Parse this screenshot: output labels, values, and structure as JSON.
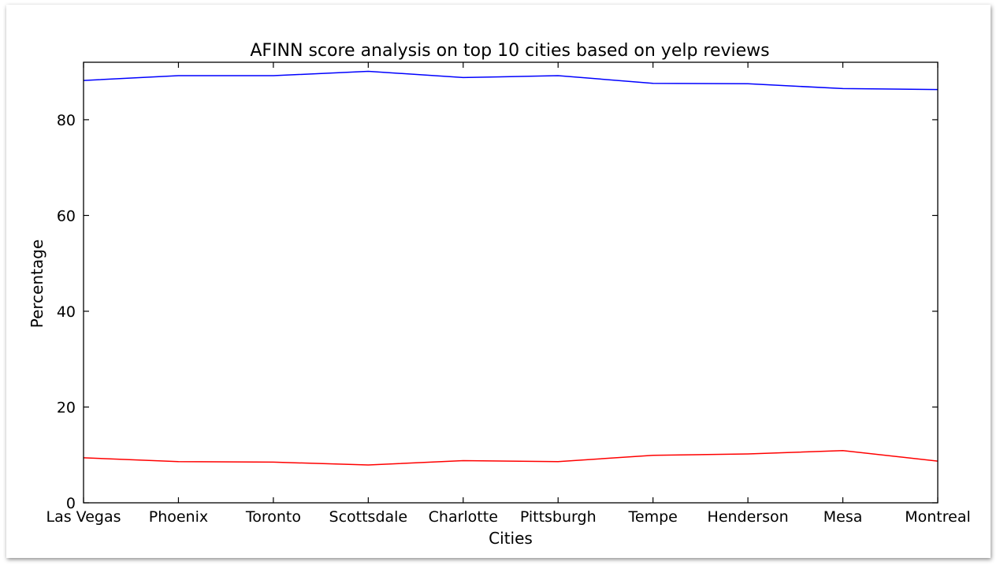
{
  "chart_data": {
    "type": "line",
    "title": "AFINN score analysis on top 10 cities based on yelp reviews",
    "xlabel": "Cities",
    "ylabel": "Percentage",
    "categories": [
      "Las Vegas",
      "Phoenix",
      "Toronto",
      "Scottsdale",
      "Charlotte",
      "Pittsburgh",
      "Tempe",
      "Henderson",
      "Mesa",
      "Montreal"
    ],
    "ylim": [
      0,
      92
    ],
    "yticks": [
      0,
      20,
      40,
      60,
      80
    ],
    "grid": false,
    "series": [
      {
        "color": "#0000ff",
        "values": [
          88.2,
          89.2,
          89.2,
          90.1,
          88.8,
          89.2,
          87.6,
          87.5,
          86.5,
          86.3
        ]
      },
      {
        "color": "#ff0000",
        "values": [
          9.4,
          8.6,
          8.5,
          7.9,
          8.8,
          8.6,
          9.9,
          10.2,
          10.9,
          8.7
        ]
      }
    ]
  }
}
